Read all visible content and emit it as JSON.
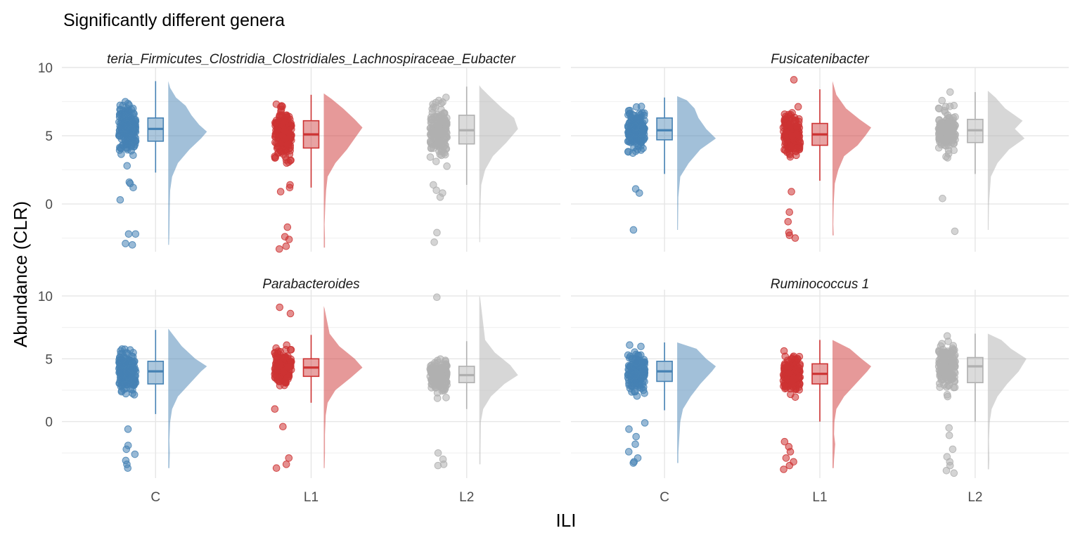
{
  "colors": {
    "C": "#4682b4",
    "L1": "#cd3333",
    "L2": "#b0b0b0",
    "grid_major": "#e6e6e6",
    "grid_minor": "#f2f2f2",
    "text": "#000000",
    "axis_text": "#4d4d4d"
  },
  "chart_data": {
    "type": "raincloud",
    "title": "Significantly different genera",
    "xlabel": "ILI",
    "ylabel": "Abundance (CLR)",
    "categories": [
      "C",
      "L1",
      "L2"
    ],
    "y_ticks": [
      0,
      5,
      10
    ],
    "grid": true,
    "panels": [
      {
        "title": "teria_Firmicutes_Clostridia_Clostridiales_Lachnospiraceae_Eubacter",
        "ylim": [
          -3.5,
          10
        ],
        "groups": [
          {
            "name": "C",
            "box": {
              "whisker_low": 2.3,
              "q1": 4.6,
              "median": 5.5,
              "q3": 6.3,
              "whisker_high": 9.0
            },
            "density": [
              [
                -3.0,
                0.02
              ],
              [
                -2.2,
                0.03
              ],
              [
                0,
                0.04
              ],
              [
                1,
                0.05
              ],
              [
                2,
                0.1
              ],
              [
                3,
                0.25
              ],
              [
                4,
                0.55
              ],
              [
                4.8,
                0.85
              ],
              [
                5.3,
                1.0
              ],
              [
                5.8,
                0.8
              ],
              [
                6.5,
                0.6
              ],
              [
                7.2,
                0.45
              ],
              [
                7.8,
                0.2
              ],
              [
                8.5,
                0.05
              ],
              [
                9,
                0
              ]
            ],
            "outliers": [
              -2.9,
              -3.0,
              -2.2,
              -2.2,
              0.3,
              1.2,
              1.5,
              1.6
            ]
          },
          {
            "name": "L1",
            "box": {
              "whisker_low": 1.2,
              "q1": 4.1,
              "median": 5.1,
              "q3": 6.1,
              "whisker_high": 8.0
            },
            "density": [
              [
                -3.2,
                0.03
              ],
              [
                -2.5,
                0.03
              ],
              [
                -1.5,
                0.02
              ],
              [
                0,
                0.04
              ],
              [
                1,
                0.06
              ],
              [
                2,
                0.1
              ],
              [
                3,
                0.3
              ],
              [
                4,
                0.6
              ],
              [
                5,
                0.85
              ],
              [
                5.6,
                1.0
              ],
              [
                6.2,
                0.8
              ],
              [
                7,
                0.5
              ],
              [
                7.7,
                0.2
              ],
              [
                8.1,
                0
              ]
            ],
            "outliers": [
              -1.7,
              -2.4,
              -2.6,
              -3.1,
              -3.3,
              0.9,
              1.2,
              1.4
            ]
          },
          {
            "name": "L2",
            "box": {
              "whisker_low": 1.4,
              "q1": 4.4,
              "median": 5.4,
              "q3": 6.5,
              "whisker_high": 8.6
            },
            "density": [
              [
                -2.8,
                0.02
              ],
              [
                -2,
                0.02
              ],
              [
                0,
                0.03
              ],
              [
                1.4,
                0.05
              ],
              [
                2.5,
                0.15
              ],
              [
                3.5,
                0.35
              ],
              [
                4.5,
                0.7
              ],
              [
                5.5,
                1.0
              ],
              [
                6.3,
                0.9
              ],
              [
                7,
                0.6
              ],
              [
                7.8,
                0.3
              ],
              [
                8.5,
                0.05
              ],
              [
                8.7,
                0
              ]
            ],
            "outliers": [
              -2.1,
              -2.8,
              0.5,
              0.8,
              1.0,
              1.4
            ]
          }
        ]
      },
      {
        "title": "Fusicatenibacter",
        "ylim": [
          -3.5,
          10
        ],
        "groups": [
          {
            "name": "C",
            "box": {
              "whisker_low": 2.2,
              "q1": 4.7,
              "median": 5.4,
              "q3": 6.3,
              "whisker_high": 7.8
            },
            "density": [
              [
                -1.9,
                0.02
              ],
              [
                0.5,
                0.03
              ],
              [
                2,
                0.08
              ],
              [
                3,
                0.3
              ],
              [
                4,
                0.6
              ],
              [
                4.8,
                1.0
              ],
              [
                5.5,
                0.75
              ],
              [
                6.3,
                0.55
              ],
              [
                7,
                0.45
              ],
              [
                7.6,
                0.25
              ],
              [
                7.9,
                0
              ]
            ],
            "outliers": [
              -1.9,
              0.8,
              1.1
            ]
          },
          {
            "name": "L1",
            "box": {
              "whisker_low": 1.7,
              "q1": 4.3,
              "median": 5.1,
              "q3": 5.9,
              "whisker_high": 8.4
            },
            "density": [
              [
                -2.3,
                0.03
              ],
              [
                -1.5,
                0.02
              ],
              [
                0,
                0.03
              ],
              [
                1.5,
                0.06
              ],
              [
                2.5,
                0.15
              ],
              [
                3.5,
                0.3
              ],
              [
                4.3,
                0.65
              ],
              [
                5,
                0.85
              ],
              [
                5.6,
                1.0
              ],
              [
                6.2,
                0.7
              ],
              [
                7,
                0.35
              ],
              [
                8,
                0.1
              ],
              [
                9,
                0
              ]
            ],
            "outliers": [
              -0.6,
              -1.3,
              -2.1,
              -2.3,
              -2.5,
              0.9,
              9.1
            ]
          },
          {
            "name": "L2",
            "box": {
              "whisker_low": 2.2,
              "q1": 4.5,
              "median": 5.4,
              "q3": 6.2,
              "whisker_high": 8.2
            },
            "density": [
              [
                -1.9,
                0.02
              ],
              [
                0,
                0.03
              ],
              [
                2,
                0.08
              ],
              [
                3,
                0.25
              ],
              [
                4,
                0.55
              ],
              [
                4.8,
                0.95
              ],
              [
                5.5,
                0.7
              ],
              [
                6.1,
                0.9
              ],
              [
                7,
                0.45
              ],
              [
                7.8,
                0.2
              ],
              [
                8.3,
                0
              ]
            ],
            "outliers": [
              -2.0,
              0.4,
              8.2
            ]
          }
        ]
      },
      {
        "title": "Parabacteroides",
        "ylim": [
          -4.5,
          10.5
        ],
        "groups": [
          {
            "name": "C",
            "box": {
              "whisker_low": 0.6,
              "q1": 3.0,
              "median": 4.0,
              "q3": 4.8,
              "whisker_high": 7.3
            },
            "density": [
              [
                -3.7,
                0.03
              ],
              [
                -2.5,
                0.04
              ],
              [
                -1.5,
                0.03
              ],
              [
                0,
                0.05
              ],
              [
                1,
                0.1
              ],
              [
                2,
                0.25
              ],
              [
                3,
                0.55
              ],
              [
                4,
                0.85
              ],
              [
                4.4,
                1.0
              ],
              [
                5,
                0.7
              ],
              [
                6,
                0.35
              ],
              [
                7,
                0.1
              ],
              [
                7.4,
                0
              ]
            ],
            "outliers": [
              -0.6,
              -1.9,
              -2.2,
              -2.6,
              -3.1,
              -3.4,
              -3.7
            ]
          },
          {
            "name": "L1",
            "box": {
              "whisker_low": 1.5,
              "q1": 3.6,
              "median": 4.3,
              "q3": 5.0,
              "whisker_high": 6.9
            },
            "density": [
              [
                -3.7,
                0.02
              ],
              [
                -2.5,
                0.03
              ],
              [
                -1,
                0.03
              ],
              [
                0.5,
                0.05
              ],
              [
                1.5,
                0.1
              ],
              [
                2.5,
                0.3
              ],
              [
                3.5,
                0.7
              ],
              [
                4.3,
                1.0
              ],
              [
                5,
                0.8
              ],
              [
                6,
                0.4
              ],
              [
                7,
                0.15
              ],
              [
                9,
                0.02
              ],
              [
                9.2,
                0
              ]
            ],
            "outliers": [
              -2.9,
              -3.4,
              -3.7,
              -0.4,
              9.1,
              8.6,
              1.0
            ]
          },
          {
            "name": "L2",
            "box": {
              "whisker_low": 1.0,
              "q1": 3.1,
              "median": 3.7,
              "q3": 4.4,
              "whisker_high": 6.4
            },
            "density": [
              [
                -3.4,
                0.03
              ],
              [
                -2.5,
                0.03
              ],
              [
                0,
                0.04
              ],
              [
                1,
                0.1
              ],
              [
                2,
                0.3
              ],
              [
                3,
                0.65
              ],
              [
                3.7,
                1.0
              ],
              [
                4.5,
                0.8
              ],
              [
                5.5,
                0.4
              ],
              [
                6.5,
                0.15
              ],
              [
                9.9,
                0.02
              ],
              [
                10,
                0
              ]
            ],
            "outliers": [
              -2.5,
              -3.0,
              -3.4,
              -3.5,
              9.9
            ]
          }
        ]
      },
      {
        "title": "Ruminococcus 1",
        "ylim": [
          -4.5,
          10.5
        ],
        "groups": [
          {
            "name": "C",
            "box": {
              "whisker_low": 0.9,
              "q1": 3.2,
              "median": 4.0,
              "q3": 4.8,
              "whisker_high": 6.3
            },
            "density": [
              [
                -3.3,
                0.03
              ],
              [
                -2.5,
                0.03
              ],
              [
                -1.5,
                0.05
              ],
              [
                0,
                0.08
              ],
              [
                1,
                0.15
              ],
              [
                2,
                0.35
              ],
              [
                3,
                0.6
              ],
              [
                4,
                0.9
              ],
              [
                4.4,
                1.0
              ],
              [
                5,
                0.75
              ],
              [
                5.8,
                0.5
              ],
              [
                6.3,
                0
              ]
            ],
            "outliers": [
              -0.1,
              -0.6,
              -1.2,
              -1.8,
              -2.4,
              -2.9,
              -3.2,
              -3.3
            ]
          },
          {
            "name": "L1",
            "box": {
              "whisker_low": 0.0,
              "q1": 3.0,
              "median": 3.8,
              "q3": 4.6,
              "whisker_high": 6.5
            },
            "density": [
              [
                -3.7,
                0.03
              ],
              [
                -3,
                0.04
              ],
              [
                -1.8,
                0.07
              ],
              [
                -1,
                0.04
              ],
              [
                0,
                0.05
              ],
              [
                1,
                0.1
              ],
              [
                2,
                0.3
              ],
              [
                3,
                0.6
              ],
              [
                4,
                0.9
              ],
              [
                4.4,
                1.0
              ],
              [
                5,
                0.75
              ],
              [
                5.8,
                0.45
              ],
              [
                6.5,
                0
              ]
            ],
            "outliers": [
              -1.6,
              -2.0,
              -2.4,
              -2.9,
              -3.2,
              -3.5,
              -3.8
            ]
          },
          {
            "name": "L2",
            "box": {
              "whisker_low": 0.0,
              "q1": 3.1,
              "median": 4.4,
              "q3": 5.1,
              "whisker_high": 7.0
            },
            "density": [
              [
                -3.8,
                0.03
              ],
              [
                -3,
                0.04
              ],
              [
                -1.5,
                0.03
              ],
              [
                0,
                0.05
              ],
              [
                1,
                0.1
              ],
              [
                2,
                0.25
              ],
              [
                3,
                0.5
              ],
              [
                4,
                0.8
              ],
              [
                5,
                1.0
              ],
              [
                5.8,
                0.6
              ],
              [
                6.5,
                0.35
              ],
              [
                7,
                0
              ]
            ],
            "outliers": [
              -0.5,
              -1.1,
              -2.2,
              -2.8,
              -3.2,
              -3.5,
              -3.9,
              -4.1
            ]
          }
        ]
      }
    ]
  }
}
